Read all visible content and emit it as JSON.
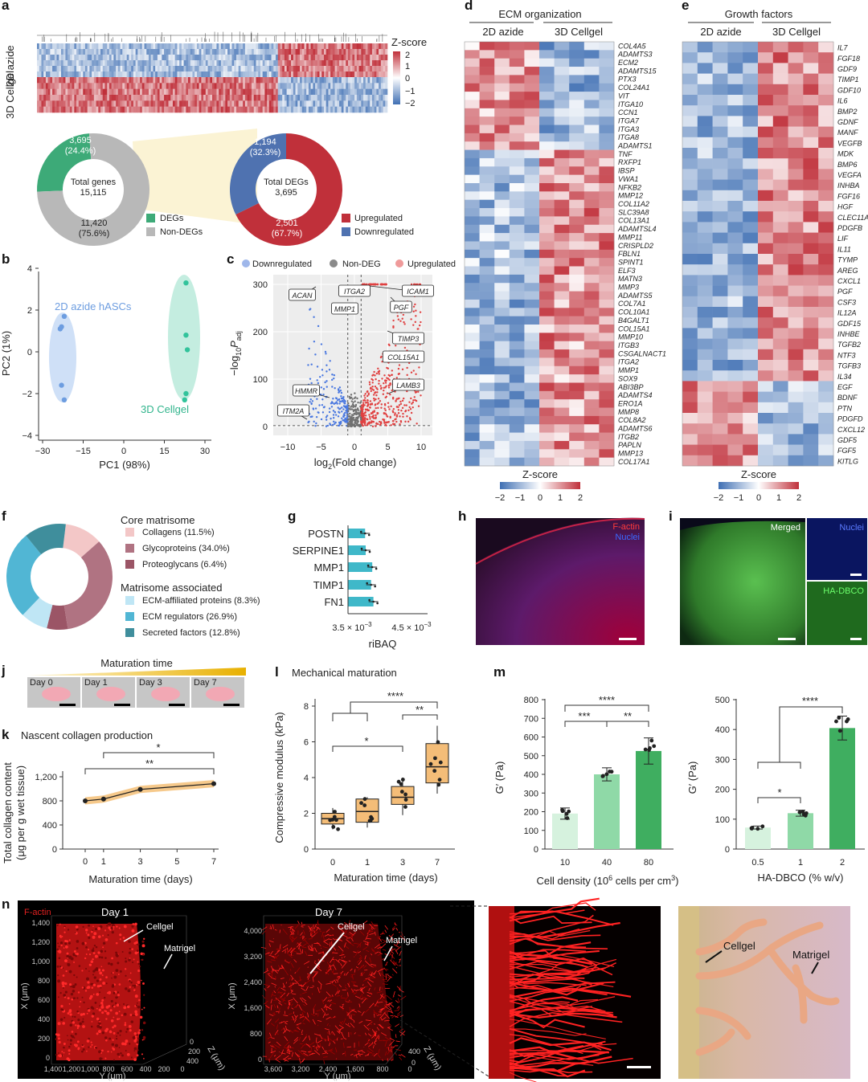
{
  "colors": {
    "red": "#c0303a",
    "blue": "#4f72b0",
    "green": "#3daa78",
    "grey": "#b8b8b8",
    "teal": "#3fb8c9",
    "orange": "#f4bd78",
    "lightgreen": "#d6f2de",
    "midgreen": "#8fd9a7",
    "darkgreen": "#3fae60"
  },
  "panel_letters": {
    "a": "a",
    "b": "b",
    "c": "c",
    "d": "d",
    "e": "e",
    "f": "f",
    "g": "g",
    "h": "h",
    "i": "i",
    "j": "j",
    "k": "k",
    "l": "l",
    "m": "m",
    "n": "n"
  },
  "panel_a": {
    "row_2d": "2D azide",
    "row_3d": "3D Cellgel",
    "zscore_title": "Z-score",
    "zscore_ticks": [
      "2",
      "1",
      "0",
      "−1",
      "−2"
    ],
    "donut_left": {
      "center_line1": "Total genes",
      "center_line2": "15,115",
      "degs_label": "3,695",
      "degs_pct": "(24.4%)",
      "non_label": "11,420",
      "non_pct": "(75.6%)",
      "legend": [
        "DEGs",
        "Non-DEGs"
      ]
    },
    "donut_right": {
      "center_line1": "Total DEGs",
      "center_line2": "3,695",
      "down_label": "1,194",
      "down_pct": "(32.3%)",
      "up_label": "2,501",
      "up_pct": "(67.7%)",
      "legend": [
        "Upregulated",
        "Downregulated"
      ]
    }
  },
  "panel_b": {
    "xlabel": "PC1 (98%)",
    "ylabel": "PC2 (1%)",
    "xticks": [
      "−30",
      "−15",
      "0",
      "15",
      "30"
    ],
    "yticks": [
      "4",
      "2",
      "0",
      "−2",
      "−4"
    ],
    "group_2d": "2D azide hASCs",
    "group_3d": "3D Cellgel"
  },
  "panel_c": {
    "legend": [
      "Downregulated",
      "Non-DEG",
      "Upregulated"
    ],
    "xlabel": "log",
    "xlabel_sub": "2",
    "xlabel_rest": "(Fold change)",
    "ylabel": "−log",
    "ylabel_sub": "10",
    "ylabel_p": "P",
    "ylabel_adj": "adj",
    "xticks": [
      "−10",
      "−5",
      "0",
      "5",
      "10"
    ],
    "yticks": [
      "300",
      "200",
      "100",
      "0"
    ],
    "genes": [
      "ACAN",
      "ITGA2",
      "ICAM1",
      "MMP1",
      "PGF",
      "TIMP3",
      "COL15A1",
      "LAMB3",
      "HMMR",
      "ITM2A"
    ]
  },
  "panel_d": {
    "title": "ECM organization",
    "col_2d": "2D azide",
    "col_3d": "3D Cellgel",
    "zscore": "Z-score",
    "ticks": [
      "−2",
      "−1",
      "0",
      "1",
      "2"
    ],
    "genes": [
      "COL4A5",
      "ADAMTS3",
      "ECM2",
      "ADAMTS15",
      "PTX3",
      "COL24A1",
      "VIT",
      "ITGA10",
      "CCN1",
      "ITGA7",
      "ITGA3",
      "ITGA8",
      "ADAMTS1",
      "TNF",
      "RXFP1",
      "IBSP",
      "VWA1",
      "NFKB2",
      "MMP12",
      "COL11A2",
      "SLC39A8",
      "COL13A1",
      "ADAMTSL4",
      "MMP11",
      "CRISPLD2",
      "FBLN1",
      "SPINT1",
      "ELF3",
      "MATN3",
      "MMP3",
      "ADAMTS5",
      "COL7A1",
      "COL10A1",
      "B4GALT1",
      "COL15A1",
      "MMP10",
      "ITGB3",
      "CSGALNACT1",
      "ITGA2",
      "MMP1",
      "SOX9",
      "ABI3BP",
      "ADAMTS4",
      "ERO1A",
      "MMP8",
      "COL8A2",
      "ADAMTS6",
      "ITGB2",
      "PAPLN",
      "MMP13",
      "COL17A1"
    ]
  },
  "panel_e": {
    "title": "Growth factors",
    "col_2d": "2D azide",
    "col_3d": "3D Cellgel",
    "zscore": "Z-score",
    "ticks": [
      "−2",
      "−1",
      "0",
      "1",
      "2"
    ],
    "genes": [
      "IL7",
      "FGF18",
      "GDF9",
      "TIMP1",
      "GDF10",
      "IL6",
      "BMP2",
      "GDNF",
      "MANF",
      "VEGFB",
      "MDK",
      "BMP6",
      "VEGFA",
      "INHBA",
      "FGF16",
      "HGF",
      "CLEC11A",
      "PDGFB",
      "LIF",
      "IL11",
      "TYMP",
      "AREG",
      "CXCL1",
      "PGF",
      "CSF3",
      "IL12A",
      "GDF15",
      "INHBE",
      "TGFB2",
      "NTF3",
      "TGFB3",
      "IL34",
      "EGF",
      "BDNF",
      "PTN",
      "PDGFD",
      "CXCL12",
      "GDF5",
      "FGF5",
      "KITLG"
    ]
  },
  "panel_f": {
    "head1": "Core matrisome",
    "head2": "Matrisome associated",
    "items": [
      {
        "label": "Collagens (11.5%)",
        "color": "#f3c7c7"
      },
      {
        "label": "Glycoproteins (34.0%)",
        "color": "#b07382"
      },
      {
        "label": "Proteoglycans (6.4%)",
        "color": "#9b5566"
      },
      {
        "label": "ECM-affiliated proteins (8.3%)",
        "color": "#bfe6f5"
      },
      {
        "label": "ECM regulators (26.9%)",
        "color": "#51b6d4"
      },
      {
        "label": "Secreted factors (12.8%)",
        "color": "#3f8e9c"
      }
    ]
  },
  "panel_g": {
    "xlabel": "riBAQ",
    "xtick1": "3.5 × 10",
    "xtick2": "4.5 × 10",
    "xtick_exp": "−3",
    "genes": [
      "POSTN",
      "SERPINE1",
      "MMP1",
      "TIMP1",
      "FN1"
    ]
  },
  "panel_h": {
    "label1": "F-actin",
    "label2": "Nuclei"
  },
  "panel_i": {
    "merged": "Merged",
    "nuclei": "Nuclei",
    "ha": "HA-DBCO"
  },
  "panel_j": {
    "title": "Maturation time",
    "days": [
      "Day 0",
      "Day 1",
      "Day 3",
      "Day 7"
    ]
  },
  "panel_k": {
    "title": "Nascent collagen production",
    "xlabel": "Maturation time (days)",
    "ylabel1": "Total collagen content",
    "ylabel2": "(μg per g wet tissue)",
    "xticks": [
      "0",
      "1",
      "3",
      "5",
      "7"
    ],
    "yticks": [
      "1,200",
      "800",
      "400",
      "0"
    ],
    "sig1": "*",
    "sig2": "**"
  },
  "panel_l": {
    "title": "Mechanical maturation",
    "xlabel": "Maturation time (days)",
    "ylabel": "Compressive modulus (kPa)",
    "xticks": [
      "0",
      "1",
      "3",
      "7"
    ],
    "yticks": [
      "8",
      "6",
      "4",
      "2",
      "0"
    ],
    "sig_a": "****",
    "sig_b": "**",
    "sig_c": "*"
  },
  "panel_m1": {
    "xlabel": "Cell density (10",
    "xlabel_sup": "6",
    "xlabel_rest": " cells per cm",
    "xlabel_sup2": "3",
    "xlabel_end": ")",
    "ylabel": "G′ (Pa)",
    "xticks": [
      "10",
      "40",
      "80"
    ],
    "yticks": [
      "800",
      "700",
      "600",
      "500",
      "400",
      "300",
      "200",
      "100",
      "0"
    ],
    "sig_a": "****",
    "sig_b": "***",
    "sig_c": "**"
  },
  "panel_m2": {
    "xlabel": "HA-DBCO (% w/v)",
    "ylabel": "G′ (Pa)",
    "xticks": [
      "0.5",
      "1",
      "2"
    ],
    "yticks": [
      "500",
      "400",
      "300",
      "200",
      "100",
      "0"
    ],
    "sig_a": "****",
    "sig_b": "*"
  },
  "panel_n": {
    "factin": "F-actin",
    "day1": "Day 1",
    "day7": "Day 7",
    "cellgel": "Cellgel",
    "matrigel": "Matrigel",
    "x_um": "X (μm)",
    "y_um": "Y (μm)",
    "z_um": "Z (μm)",
    "d1_xticks": [
      "1,400",
      "1,200",
      "1,000",
      "800",
      "600",
      "400",
      "200",
      "0"
    ],
    "d1_yticks": [
      "1,400",
      "1,200",
      "1,000",
      "800",
      "600",
      "400",
      "200",
      "0"
    ],
    "d7_xticks": [
      "3,600",
      "3,200",
      "2,400",
      "1,600",
      "800",
      "0"
    ],
    "d7_yticks": [
      "4,000",
      "3,200",
      "2,400",
      "1,600",
      "800",
      "0"
    ],
    "z_d1": [
      "0",
      "200",
      "400"
    ],
    "z_d7": [
      "0",
      "400"
    ]
  },
  "chart_data": [
    {
      "type": "pie",
      "panel": "a-left",
      "title": "",
      "categories": [
        "DEGs",
        "Non-DEGs"
      ],
      "values": [
        3695,
        11420
      ]
    },
    {
      "type": "pie",
      "panel": "a-right",
      "title": "",
      "categories": [
        "Upregulated",
        "Downregulated"
      ],
      "values": [
        2501,
        1194
      ]
    },
    {
      "type": "scatter",
      "panel": "b",
      "xlabel": "PC1 (98%)",
      "ylabel": "PC2 (1%)",
      "xlim": [
        -33,
        33
      ],
      "ylim": [
        -4.6,
        4.6
      ],
      "series": [
        {
          "name": "2D azide hASCs",
          "x": [
            -22,
            -23,
            -23.5,
            -23,
            -22
          ],
          "y": [
            1.7,
            1.2,
            1.1,
            -1.6,
            -2.3
          ]
        },
        {
          "name": "3D Cellgel",
          "x": [
            23,
            23,
            23.5,
            23,
            22.5
          ],
          "y": [
            3.3,
            0.8,
            0.1,
            -2.0,
            -2.3
          ]
        }
      ]
    },
    {
      "type": "scatter",
      "panel": "c",
      "xlabel": "log2(Fold change)",
      "ylabel": "−log10 Padj",
      "xlim": [
        -12,
        12
      ],
      "ylim": [
        -10,
        320
      ]
    },
    {
      "type": "pie",
      "panel": "f",
      "categories": [
        "Collagens",
        "Glycoproteins",
        "Proteoglycans",
        "ECM-affiliated proteins",
        "ECM regulators",
        "Secreted factors"
      ],
      "values": [
        11.5,
        34.0,
        6.4,
        8.3,
        26.9,
        12.8
      ]
    },
    {
      "type": "bar",
      "panel": "g",
      "xlabel": "riBAQ",
      "categories": [
        "POSTN",
        "SERPINE1",
        "MMP1",
        "TIMP1",
        "FN1"
      ],
      "values": [
        0.00372,
        0.00373,
        0.00384,
        0.00382,
        0.00386
      ],
      "xlim": [
        0.0032,
        0.0048
      ]
    },
    {
      "type": "line",
      "panel": "k",
      "title": "Nascent collagen production",
      "xlabel": "Maturation time (days)",
      "ylabel": "Total collagen content (μg per g wet tissue)",
      "x": [
        0,
        1,
        3,
        7
      ],
      "y": [
        800,
        830,
        990,
        1085
      ],
      "ylim": [
        0,
        1300
      ],
      "xlim": [
        -0.5,
        7.3
      ]
    },
    {
      "type": "box",
      "panel": "l",
      "title": "Mechanical maturation",
      "xlabel": "Maturation time (days)",
      "ylabel": "Compressive modulus (kPa)",
      "categories": [
        "0",
        "1",
        "3",
        "7"
      ],
      "median": [
        1.7,
        2.1,
        2.9,
        4.6
      ],
      "q1": [
        1.4,
        1.5,
        2.5,
        3.7
      ],
      "q3": [
        2.0,
        2.8,
        3.5,
        5.9
      ],
      "min": [
        1.1,
        1.2,
        1.9,
        3.1
      ],
      "max": [
        2.3,
        2.9,
        4.0,
        6.9
      ],
      "ylim": [
        0,
        8
      ]
    },
    {
      "type": "bar",
      "panel": "m-left",
      "xlabel": "Cell density (10^6 cells per cm^3)",
      "ylabel": "G′ (Pa)",
      "categories": [
        "10",
        "40",
        "80"
      ],
      "values": [
        190,
        400,
        525
      ],
      "errors": [
        30,
        35,
        70
      ],
      "ylim": [
        0,
        800
      ]
    },
    {
      "type": "bar",
      "panel": "m-right",
      "xlabel": "HA-DBCO (% w/v)",
      "ylabel": "G′ (Pa)",
      "categories": [
        "0.5",
        "1",
        "2"
      ],
      "values": [
        72,
        120,
        405
      ],
      "errors": [
        5,
        10,
        40
      ],
      "ylim": [
        0,
        500
      ]
    }
  ]
}
